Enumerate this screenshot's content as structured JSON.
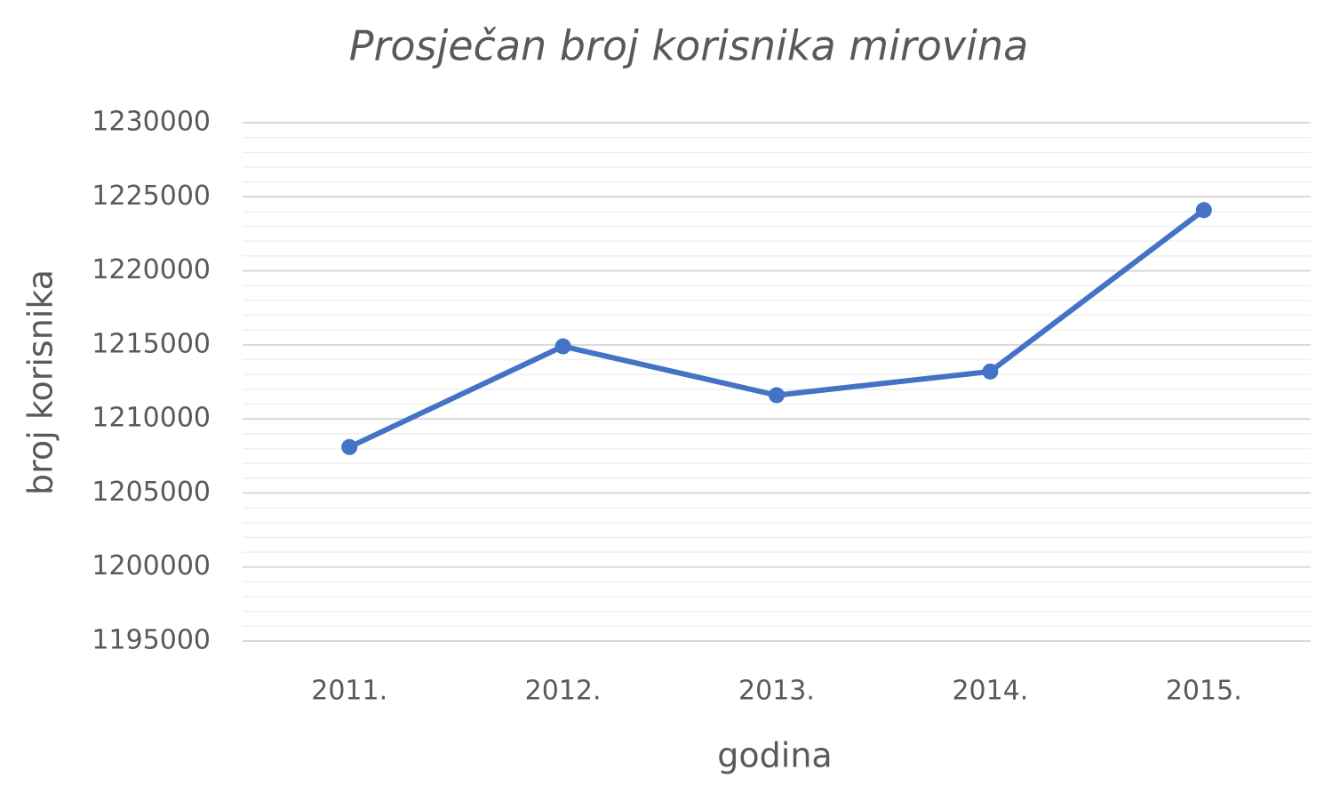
{
  "chart_data": {
    "type": "line",
    "title": "Prosječan broj korisnika mirovina",
    "x_label": "godina",
    "y_label": "broj korisnika",
    "categories": [
      "2011.",
      "2012.",
      "2013.",
      "2014.",
      "2015."
    ],
    "series": [
      {
        "name": "Prosječan broj korisnika",
        "color": "#4472c4",
        "values": [
          1208100,
          1214900,
          1211600,
          1213200,
          1224100
        ]
      }
    ],
    "ylim": [
      1195000,
      1230000
    ],
    "yticks": [
      1195000,
      1200000,
      1205000,
      1210000,
      1215000,
      1220000,
      1225000,
      1230000
    ],
    "minor_yticks": [
      1196000,
      1197000,
      1198000,
      1199000,
      1201000,
      1202000,
      1203000,
      1204000,
      1206000,
      1207000,
      1208000,
      1209000,
      1211000,
      1212000,
      1213000,
      1214000,
      1216000,
      1217000,
      1218000,
      1219000,
      1221000,
      1222000,
      1223000,
      1224000,
      1226000,
      1227000,
      1228000,
      1229000
    ],
    "grid": true
  }
}
